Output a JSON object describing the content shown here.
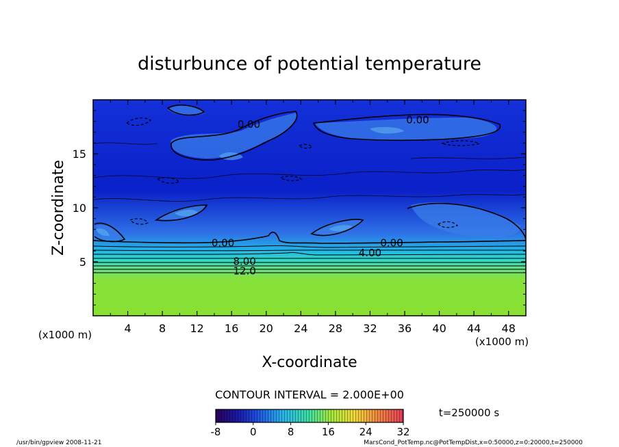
{
  "chart_data": {
    "type": "heatmap",
    "title": "disturbunce of potential temperature",
    "xlabel": "X-coordinate",
    "ylabel": "Z-coordinate",
    "x_unit_left": "(x1000 m)",
    "x_unit_right": "(x1000 m)",
    "xlim": [
      0,
      50
    ],
    "ylim": [
      0,
      20
    ],
    "x_ticks": [
      4,
      8,
      12,
      16,
      20,
      24,
      28,
      32,
      36,
      40,
      44,
      48
    ],
    "y_ticks": [
      5,
      10,
      15
    ],
    "contour_labels": [
      {
        "text": "0.00",
        "x": 18,
        "y": 17.8
      },
      {
        "text": "0.00",
        "x": 37.5,
        "y": 18.2
      },
      {
        "text": "0.00",
        "x": 15,
        "y": 6.8
      },
      {
        "text": "0.00",
        "x": 34.5,
        "y": 6.8
      },
      {
        "text": "4.00",
        "x": 32,
        "y": 5.9
      },
      {
        "text": "8.00",
        "x": 17.5,
        "y": 5.1
      },
      {
        "text": "12.0",
        "x": 17.5,
        "y": 4.2
      }
    ],
    "contour_interval_label": "CONTOUR INTERVAL = 2.000E+00",
    "time_label": "t=250000 s",
    "colorbar": {
      "min": -8,
      "max": 32,
      "tick_labels": [
        "-8",
        "0",
        "8",
        "16",
        "24",
        "32"
      ]
    },
    "grid": false,
    "legend": "none"
  },
  "footer": {
    "left": "/usr/bin/gpview   2008-11-21",
    "right": "MarsCond_PotTemp.nc@PotTempDist,x=0:50000,z=0:20000,t=250000"
  }
}
